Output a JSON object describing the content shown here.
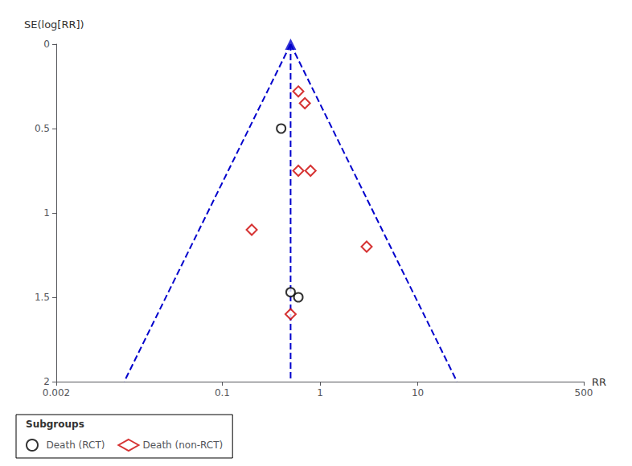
{
  "chart_data": {
    "type": "scatter",
    "xlabel": "RR",
    "ylabel": "SE(log[RR])",
    "log": "x",
    "grid": false,
    "legend": "bottom left",
    "legend_title": "Subgroups",
    "xlim": [
      0.002,
      500
    ],
    "ylim": [
      0,
      2
    ],
    "xticks": [
      0.002,
      0.1,
      1,
      10,
      500
    ],
    "yticks": [
      0,
      0.5,
      1,
      1.5,
      2
    ],
    "series": [
      {
        "type": "line",
        "line_style": "dashed",
        "color": "#0000cc",
        "x": [
          0.5,
          0.009921
        ],
        "values": [
          0,
          2
        ]
      },
      {
        "type": "line",
        "line_style": "dashed",
        "color": "#0000cc",
        "x": [
          0.5,
          25.2002
        ],
        "values": [
          0,
          2
        ]
      },
      {
        "type": "line",
        "line_style": "dashed",
        "color": "#0000cc",
        "x": [
          0.5,
          0.5
        ],
        "values": [
          0,
          2
        ]
      },
      {
        "type": "scatter",
        "marker": "triangle",
        "color": "#0000cc",
        "x": [
          0.5
        ],
        "values": [
          0
        ]
      },
      {
        "type": "scatter",
        "name": "Death (RCT)",
        "marker": "circle",
        "color": "#000000",
        "x": [
          0.4,
          0.5,
          0.6
        ],
        "values": [
          0.5,
          1.47,
          1.5
        ]
      },
      {
        "type": "scatter",
        "name": "Death (non-RCT)",
        "marker": "diamond",
        "color": "#cc0000",
        "x": [
          0.6,
          0.7,
          0.6,
          0.8,
          0.2,
          0.5,
          3.0
        ],
        "values": [
          0.28,
          0.35,
          0.75,
          0.75,
          1.1,
          1.6,
          1.2
        ]
      }
    ]
  }
}
